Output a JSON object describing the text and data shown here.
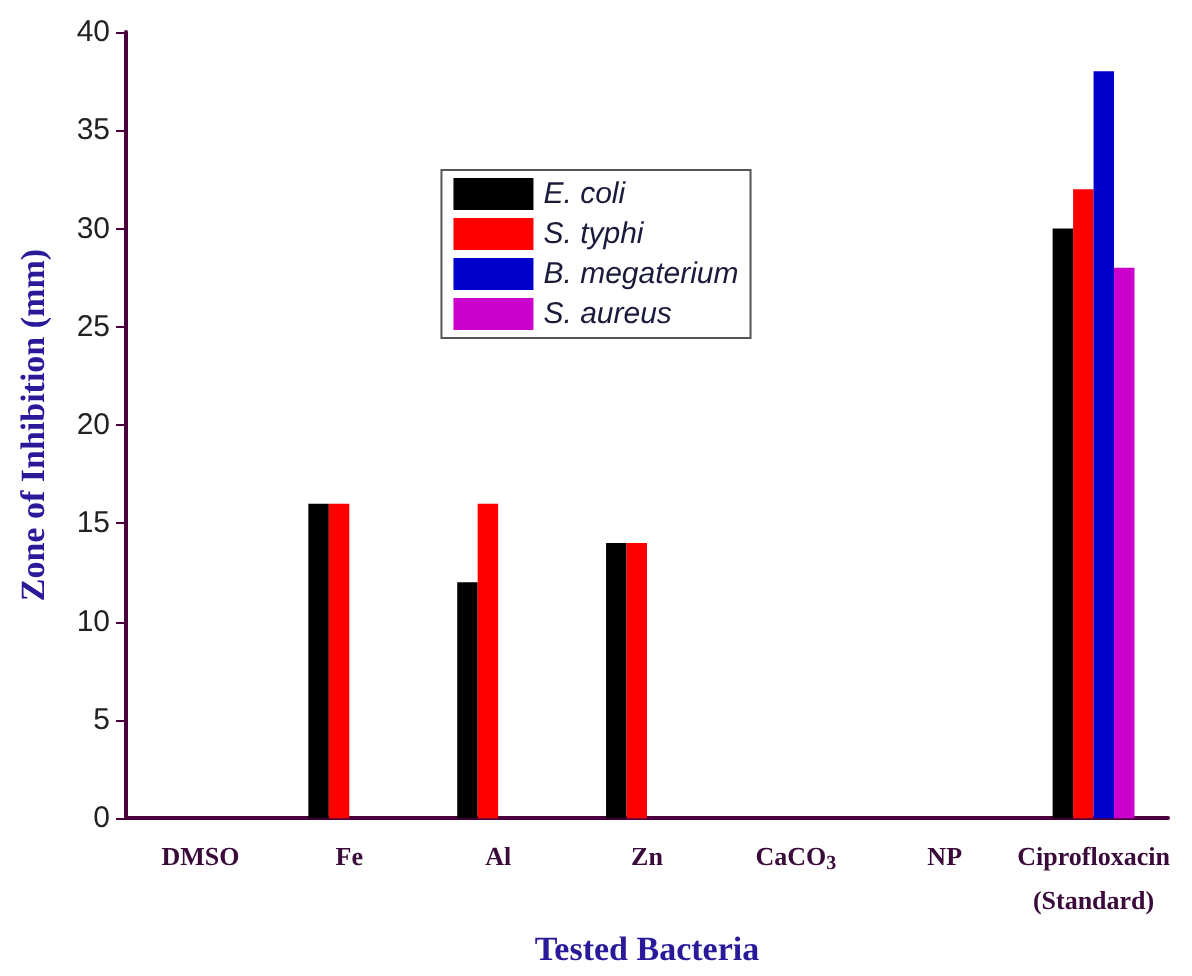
{
  "chart_data": {
    "type": "bar",
    "xlabel": "Tested Bacteria",
    "ylabel": "Zone of Inhibition (mm)",
    "categories": [
      "DMSO",
      "Fe",
      "Al",
      "Zn",
      "CaCO$_{3}$",
      "NP",
      "Ciprofloxacin\n(Standard)"
    ],
    "series": [
      {
        "name": "E. coli",
        "color": "#000000",
        "values": [
          null,
          16,
          12,
          14,
          null,
          null,
          30
        ]
      },
      {
        "name": "S. typhi",
        "color": "#ff0000",
        "values": [
          null,
          16,
          16,
          14,
          null,
          null,
          32
        ]
      },
      {
        "name": "B. megaterium",
        "color": "#0000cc",
        "values": [
          null,
          null,
          null,
          null,
          null,
          null,
          38
        ]
      },
      {
        "name": "S. aureus",
        "color": "#cc00cc",
        "values": [
          null,
          null,
          null,
          null,
          null,
          null,
          28
        ]
      }
    ],
    "ylim": [
      0,
      40
    ],
    "yticks": [
      0,
      5,
      10,
      15,
      20,
      25,
      30,
      35,
      40
    ],
    "grid": false,
    "legend": "top"
  }
}
